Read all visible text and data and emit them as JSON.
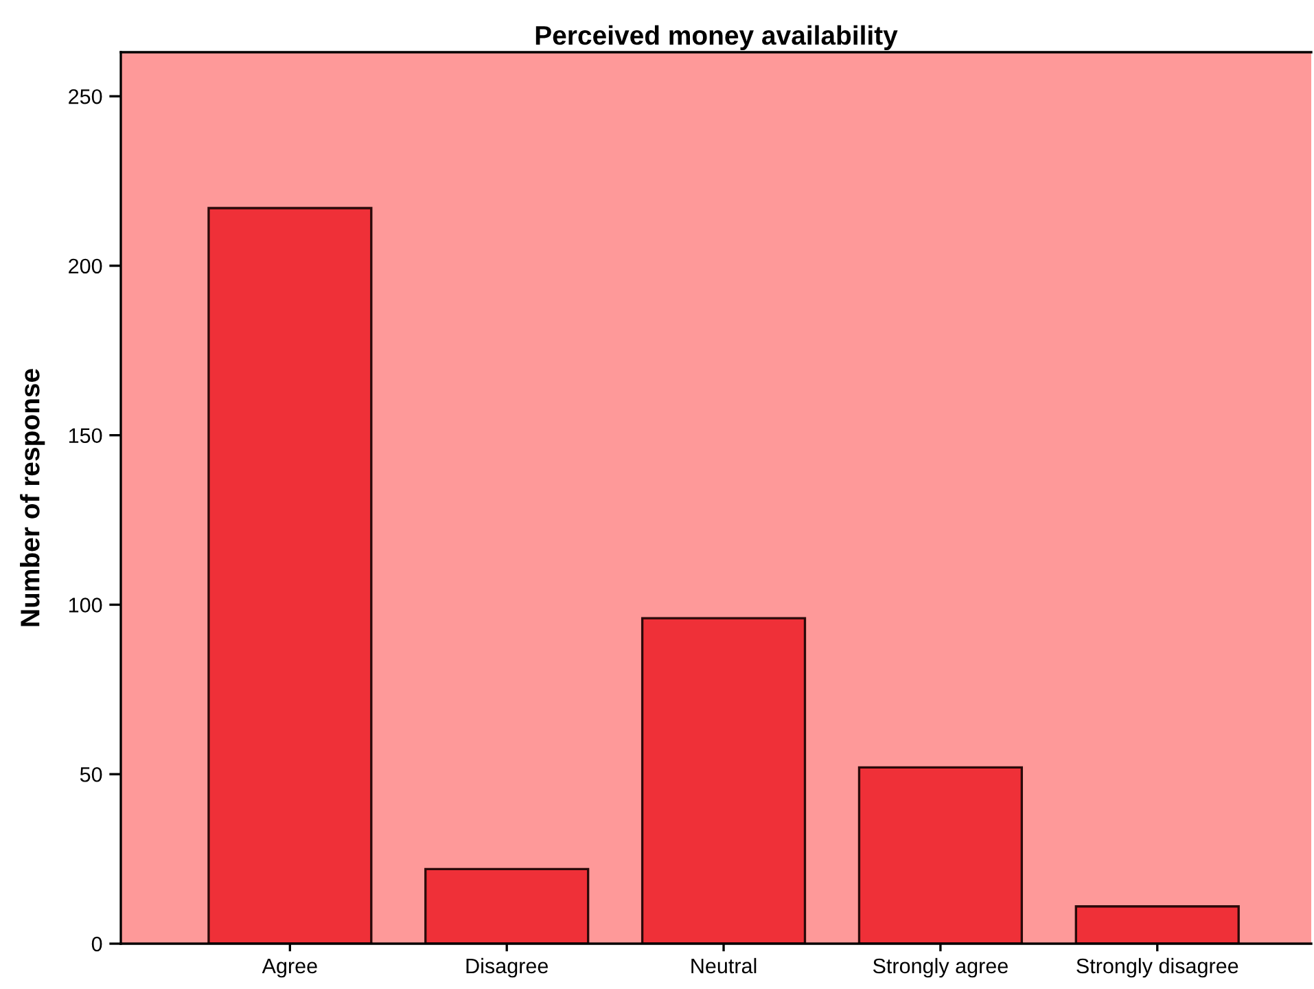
{
  "chart_data": {
    "type": "bar",
    "title": "Perceived money availability",
    "ylabel": "Number of response",
    "categories": [
      "Agree",
      "Disagree",
      "Neutral",
      "Strongly agree",
      "Strongly disagree"
    ],
    "values": [
      217,
      22,
      96,
      52,
      11
    ],
    "color": "#ef3038",
    "ylim": [
      0,
      263
    ],
    "yticks": [
      0,
      50,
      100,
      150,
      200,
      250
    ],
    "grid": false
  }
}
